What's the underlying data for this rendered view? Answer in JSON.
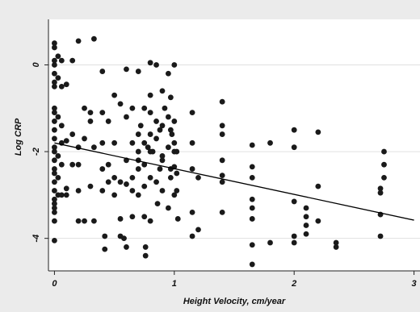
{
  "chart_data": {
    "type": "scatter",
    "title": "",
    "xlabel": "Height Velocity, cm/year",
    "ylabel": "Log CRP",
    "xlim": [
      -0.05,
      3.05
    ],
    "ylim": [
      -4.75,
      1.05
    ],
    "xticks": [
      0,
      1,
      2,
      3
    ],
    "xtick_labels": [
      "0",
      "1",
      "2",
      "3"
    ],
    "yticks": [
      0,
      -2,
      -4
    ],
    "ytick_labels": [
      "0",
      "-2",
      "-4"
    ],
    "grid": "horizontal",
    "colors": {
      "background": "#ebebeb",
      "plot_background": "#ffffff",
      "grid": "#e0e0e0",
      "marker": "#1a1a1a",
      "line": "#000000"
    },
    "fit_line": {
      "x": [
        0,
        3
      ],
      "y": [
        -1.8,
        -3.58
      ]
    },
    "points": [
      [
        0.0,
        0.5
      ],
      [
        0.0,
        0.4
      ],
      [
        0.0,
        0.1
      ],
      [
        0.0,
        0.0
      ],
      [
        0.0,
        -0.2
      ],
      [
        0.0,
        -0.4
      ],
      [
        0.0,
        -0.5
      ],
      [
        0.0,
        -1.0
      ],
      [
        0.0,
        -1.1
      ],
      [
        0.0,
        -1.3
      ],
      [
        0.0,
        -1.5
      ],
      [
        0.0,
        -1.7
      ],
      [
        0.0,
        -1.9
      ],
      [
        0.0,
        -2.0
      ],
      [
        0.0,
        -2.2
      ],
      [
        0.0,
        -2.4
      ],
      [
        0.0,
        -2.5
      ],
      [
        0.0,
        -2.7
      ],
      [
        0.0,
        -2.9
      ],
      [
        0.0,
        -3.1
      ],
      [
        0.0,
        -3.2
      ],
      [
        0.0,
        -3.3
      ],
      [
        0.0,
        -3.4
      ],
      [
        0.0,
        -3.6
      ],
      [
        0.0,
        -4.05
      ],
      [
        0.03,
        0.2
      ],
      [
        0.03,
        -0.3
      ],
      [
        0.03,
        -1.2
      ],
      [
        0.03,
        -2.1
      ],
      [
        0.03,
        -2.6
      ],
      [
        0.03,
        -3.0
      ],
      [
        0.06,
        0.1
      ],
      [
        0.06,
        -0.5
      ],
      [
        0.06,
        -1.4
      ],
      [
        0.06,
        -1.8
      ],
      [
        0.06,
        -2.3
      ],
      [
        0.06,
        -3.0
      ],
      [
        0.1,
        -0.45
      ],
      [
        0.1,
        -1.75
      ],
      [
        0.1,
        -2.85
      ],
      [
        0.1,
        -3.0
      ],
      [
        0.15,
        0.1
      ],
      [
        0.15,
        -1.6
      ],
      [
        0.15,
        -2.3
      ],
      [
        0.2,
        0.55
      ],
      [
        0.2,
        -1.9
      ],
      [
        0.2,
        -2.3
      ],
      [
        0.2,
        -2.9
      ],
      [
        0.2,
        -3.6
      ],
      [
        0.25,
        -1.0
      ],
      [
        0.25,
        -1.7
      ],
      [
        0.25,
        -3.6
      ],
      [
        0.3,
        -1.1
      ],
      [
        0.3,
        -1.3
      ],
      [
        0.3,
        -2.8
      ],
      [
        0.33,
        0.6
      ],
      [
        0.33,
        -1.9
      ],
      [
        0.33,
        -3.6
      ],
      [
        0.4,
        -1.1
      ],
      [
        0.4,
        -1.8
      ],
      [
        0.4,
        -2.4
      ],
      [
        0.4,
        -2.9
      ],
      [
        0.45,
        -1.3
      ],
      [
        0.45,
        -2.3
      ],
      [
        0.45,
        -2.7
      ],
      [
        0.5,
        -1.8
      ],
      [
        0.5,
        -2.6
      ],
      [
        0.5,
        -3.0
      ],
      [
        0.55,
        -2.7
      ],
      [
        0.55,
        -3.55
      ],
      [
        0.55,
        -3.95
      ],
      [
        0.6,
        -1.2
      ],
      [
        0.6,
        -2.2
      ],
      [
        0.6,
        -2.75
      ],
      [
        0.6,
        -4.2
      ],
      [
        0.65,
        -1.8
      ],
      [
        0.65,
        -2.9
      ],
      [
        0.65,
        -3.5
      ],
      [
        0.7,
        -1.6
      ],
      [
        0.7,
        -2.0
      ],
      [
        0.7,
        -2.4
      ],
      [
        0.7,
        -3.0
      ],
      [
        0.75,
        -1.0
      ],
      [
        0.75,
        -2.3
      ],
      [
        0.75,
        -2.8
      ],
      [
        0.75,
        -3.5
      ],
      [
        0.8,
        -0.7
      ],
      [
        0.8,
        -1.1
      ],
      [
        0.8,
        -1.6
      ],
      [
        0.8,
        -2.0
      ],
      [
        0.8,
        -2.6
      ],
      [
        0.8,
        -3.6
      ],
      [
        0.85,
        -1.3
      ],
      [
        0.85,
        -1.7
      ],
      [
        0.85,
        -2.7
      ],
      [
        0.9,
        -0.6
      ],
      [
        0.9,
        -1.4
      ],
      [
        0.9,
        -2.1
      ],
      [
        0.9,
        -2.2
      ],
      [
        0.9,
        -2.9
      ],
      [
        0.95,
        -1.2
      ],
      [
        0.95,
        -1.9
      ],
      [
        0.95,
        -3.3
      ],
      [
        0.97,
        -0.75
      ],
      [
        0.97,
        -1.5
      ],
      [
        0.97,
        -2.4
      ],
      [
        0.97,
        -2.6
      ],
      [
        1.0,
        0.0
      ],
      [
        1.0,
        -1.3
      ],
      [
        1.0,
        -1.8
      ],
      [
        1.0,
        -2.0
      ],
      [
        1.0,
        -2.35
      ],
      [
        1.0,
        -3.0
      ],
      [
        0.4,
        -0.15
      ],
      [
        0.6,
        -0.1
      ],
      [
        0.7,
        -0.15
      ],
      [
        0.8,
        0.05
      ],
      [
        0.85,
        0.0
      ],
      [
        0.95,
        -0.2
      ],
      [
        0.5,
        -0.7
      ],
      [
        0.55,
        -0.9
      ],
      [
        0.65,
        -1.0
      ],
      [
        0.72,
        -1.4
      ],
      [
        0.78,
        -1.9
      ],
      [
        0.88,
        -2.4
      ],
      [
        0.92,
        -1.0
      ],
      [
        0.98,
        -1.6
      ],
      [
        1.02,
        -2.0
      ],
      [
        1.02,
        -2.5
      ],
      [
        1.02,
        -2.9
      ],
      [
        1.03,
        -3.55
      ],
      [
        0.42,
        -3.95
      ],
      [
        0.42,
        -4.25
      ],
      [
        0.58,
        -4.0
      ],
      [
        0.76,
        -4.2
      ],
      [
        0.76,
        -4.4
      ],
      [
        0.86,
        -3.2
      ],
      [
        0.65,
        -2.6
      ],
      [
        0.7,
        -2.2
      ],
      [
        0.75,
        -1.8
      ],
      [
        0.82,
        -2.0
      ],
      [
        0.88,
        -1.5
      ],
      [
        1.15,
        -1.1
      ],
      [
        1.15,
        -1.8
      ],
      [
        1.15,
        -2.4
      ],
      [
        1.15,
        -3.4
      ],
      [
        1.15,
        -3.95
      ],
      [
        1.2,
        -2.6
      ],
      [
        1.2,
        -3.8
      ],
      [
        1.4,
        -0.85
      ],
      [
        1.4,
        -1.4
      ],
      [
        1.4,
        -1.6
      ],
      [
        1.4,
        -2.2
      ],
      [
        1.4,
        -2.55
      ],
      [
        1.4,
        -2.7
      ],
      [
        1.4,
        -3.4
      ],
      [
        1.65,
        -1.85
      ],
      [
        1.65,
        -2.35
      ],
      [
        1.65,
        -2.6
      ],
      [
        1.65,
        -3.1
      ],
      [
        1.65,
        -3.3
      ],
      [
        1.65,
        -3.55
      ],
      [
        1.65,
        -4.15
      ],
      [
        1.65,
        -4.6
      ],
      [
        1.8,
        -1.8
      ],
      [
        1.8,
        -4.1
      ],
      [
        2.0,
        -1.5
      ],
      [
        2.0,
        -1.9
      ],
      [
        2.0,
        -3.15
      ],
      [
        2.0,
        -3.95
      ],
      [
        2.0,
        -4.1
      ],
      [
        2.1,
        -3.3
      ],
      [
        2.1,
        -3.5
      ],
      [
        2.1,
        -3.7
      ],
      [
        2.1,
        -3.9
      ],
      [
        2.2,
        -1.55
      ],
      [
        2.2,
        -2.8
      ],
      [
        2.2,
        -3.6
      ],
      [
        2.35,
        -4.1
      ],
      [
        2.35,
        -4.2
      ],
      [
        2.72,
        -2.85
      ],
      [
        2.72,
        -2.95
      ],
      [
        2.72,
        -3.45
      ],
      [
        2.72,
        -3.95
      ],
      [
        2.75,
        -2.0
      ],
      [
        2.75,
        -2.3
      ],
      [
        2.75,
        -2.6
      ]
    ]
  }
}
